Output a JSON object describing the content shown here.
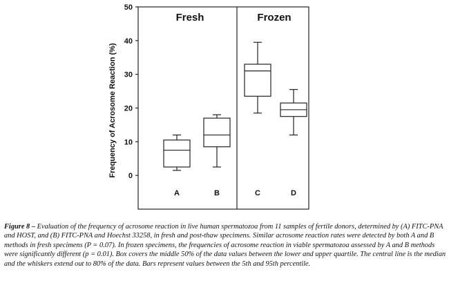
{
  "chart_data": {
    "type": "box",
    "ylabel": "Frequency of Acrosome Reaction (%)",
    "ylim": [
      -10,
      50
    ],
    "yticks": [
      0,
      10,
      20,
      30,
      40,
      50
    ],
    "panels": [
      {
        "title": "Fresh",
        "categories": [
          "A",
          "B"
        ]
      },
      {
        "title": "Frozen",
        "categories": [
          "C",
          "D"
        ]
      }
    ],
    "boxes": [
      {
        "category": "A",
        "panel": "Fresh",
        "whisker_low": 1.5,
        "q1": 2.5,
        "median": 7.5,
        "q3": 10.5,
        "whisker_high": 12
      },
      {
        "category": "B",
        "panel": "Fresh",
        "whisker_low": 2.5,
        "q1": 8.5,
        "median": 12,
        "q3": 17,
        "whisker_high": 18
      },
      {
        "category": "C",
        "panel": "Frozen",
        "whisker_low": 18.5,
        "q1": 23.5,
        "median": 31,
        "q3": 33,
        "whisker_high": 39.5
      },
      {
        "category": "D",
        "panel": "Frozen",
        "whisker_low": 12,
        "q1": 17.5,
        "median": 19.5,
        "q3": 21.5,
        "whisker_high": 25.5
      }
    ],
    "grid": false
  },
  "caption": {
    "lead": "Figure 8 – ",
    "text": "Evaluation of the frequency of acrosome reaction in live human spermatozoa from 11 samples of fertile donors, determined by (A) FITC-PNA and HOST, and (B) FITC-PNA and Hoechst 33258, in fresh and post-thaw specimens. Similar acrosome reaction rates were detected by both A and B methods in fresh specimens (P = 0.07). In frozen specimens, the frequencies of acrosome reaction in viable spermatozoa assessed by A and B methods were significantly different (p = 0.01). Box covers the middle 50% of the data values between the lower and upper quartile. The central line is the median and the whiskers extend out to 80% of the data. Bars represent values between the 5th and 95th percentile."
  }
}
